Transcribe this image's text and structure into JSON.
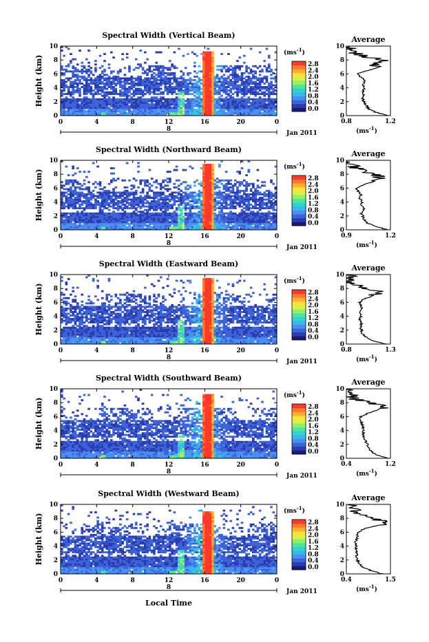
{
  "figure": {
    "xlabel": "Local Time",
    "date_label": "Jan 2011",
    "day_label": "8",
    "colorbar_unit_base": "(ms",
    "colorbar_unit_exp": "-1",
    "colorbar_ticks": [
      "2.8",
      "2.4",
      "2.0",
      "1.6",
      "1.2",
      "0.8",
      "0.4",
      "0.0"
    ],
    "colormap": [
      "#1a1a6e",
      "#2a3cb0",
      "#3d63d9",
      "#4a8ff0",
      "#3ab7ee",
      "#2fd3d0",
      "#4fe3a0",
      "#8ff06a",
      "#d7f04a",
      "#ffe23a",
      "#ffb030",
      "#ff7a2a",
      "#ff3a2a"
    ],
    "average_title": "Average",
    "average_xlabel_base": "(ms",
    "average_xlabel_exp": "-1"
  },
  "chart_data": [
    {
      "type": "heatmap",
      "title": "Spectral Width (Vertical Beam)",
      "ylabel": "Height (km)",
      "xlim": [
        0,
        24
      ],
      "ylim": [
        0,
        10
      ],
      "x_ticks": [
        "0",
        "4",
        "8",
        "12",
        "16",
        "20",
        "0"
      ],
      "y_ticks": [
        "0",
        "2",
        "4",
        "6",
        "8",
        "10"
      ],
      "colorbar_range": [
        0.0,
        2.8
      ],
      "average_profile": {
        "xlim": [
          0.8,
          1.2
        ],
        "x_ticks": [
          "0.8",
          "1.2"
        ],
        "height": [
          0,
          0.5,
          1,
          1.5,
          2,
          2.5,
          3,
          3.5,
          4,
          4.5,
          5,
          5.5,
          6,
          6.5,
          7,
          7.5,
          8,
          8.5,
          9,
          9.5,
          10
        ],
        "value": [
          1.18,
          1.06,
          1.0,
          0.98,
          0.96,
          0.95,
          0.96,
          0.95,
          0.96,
          0.95,
          0.97,
          0.94,
          0.9,
          1.0,
          1.1,
          1.05,
          1.15,
          0.95,
          0.88,
          0.85,
          0.82
        ]
      }
    },
    {
      "type": "heatmap",
      "title": "Spectral Width (Northward Beam)",
      "ylabel": "Height (km)",
      "xlim": [
        0,
        24
      ],
      "ylim": [
        0,
        10
      ],
      "x_ticks": [
        "0",
        "4",
        "8",
        "12",
        "16",
        "20",
        "0"
      ],
      "y_ticks": [
        "0",
        "2",
        "4",
        "6",
        "8",
        "10"
      ],
      "colorbar_range": [
        0.0,
        2.8
      ],
      "average_profile": {
        "xlim": [
          0.9,
          1.2
        ],
        "x_ticks": [
          "0.9",
          "1.2"
        ],
        "height": [
          0,
          0.5,
          1,
          1.5,
          2,
          2.5,
          3,
          3.5,
          4,
          4.5,
          5,
          5.5,
          6,
          6.5,
          7,
          7.5,
          8,
          8.5,
          9,
          9.5,
          10
        ],
        "value": [
          1.18,
          1.1,
          1.04,
          1.02,
          1.01,
          1.0,
          1.02,
          1.0,
          1.01,
          0.99,
          1.0,
          0.98,
          0.97,
          1.02,
          1.1,
          1.14,
          1.08,
          1.0,
          0.95,
          0.92,
          0.9
        ]
      }
    },
    {
      "type": "heatmap",
      "title": "Spectral Width (Eastward Beam)",
      "ylabel": "Height (km)",
      "xlim": [
        0,
        24
      ],
      "ylim": [
        0,
        10
      ],
      "x_ticks": [
        "0",
        "4",
        "8",
        "12",
        "16",
        "20",
        "0"
      ],
      "y_ticks": [
        "0",
        "2",
        "4",
        "6",
        "8",
        "10"
      ],
      "colorbar_range": [
        0.0,
        2.8
      ],
      "average_profile": {
        "xlim": [
          0.8,
          1.3
        ],
        "x_ticks": [
          "0.8",
          "1.3"
        ],
        "height": [
          0,
          0.5,
          1,
          1.5,
          2,
          2.5,
          3,
          3.5,
          4,
          4.5,
          5,
          5.5,
          6,
          6.5,
          7,
          7.5,
          8,
          8.5,
          9,
          9.5,
          10
        ],
        "value": [
          1.25,
          1.1,
          1.02,
          0.98,
          0.97,
          0.96,
          0.97,
          0.95,
          0.97,
          0.96,
          0.98,
          0.97,
          0.95,
          1.0,
          1.12,
          1.2,
          1.05,
          0.88,
          0.85,
          0.84,
          0.83
        ]
      }
    },
    {
      "type": "heatmap",
      "title": "Spectral Width (Southward Beam)",
      "ylabel": "Height (km)",
      "xlim": [
        0,
        24
      ],
      "ylim": [
        0,
        10
      ],
      "x_ticks": [
        "0",
        "4",
        "8",
        "12",
        "16",
        "20",
        "0"
      ],
      "y_ticks": [
        "0",
        "2",
        "4",
        "6",
        "8",
        "10"
      ],
      "colorbar_range": [
        0.0,
        2.8
      ],
      "average_profile": {
        "xlim": [
          0.4,
          1.2
        ],
        "x_ticks": [
          "0.4",
          "1.2"
        ],
        "height": [
          0,
          0.5,
          1,
          1.5,
          2,
          2.5,
          3,
          3.5,
          4,
          4.5,
          5,
          5.5,
          6,
          6.5,
          7,
          7.5,
          8,
          8.5,
          9,
          9.5,
          10
        ],
        "value": [
          1.15,
          0.95,
          0.85,
          0.8,
          0.78,
          0.75,
          0.72,
          0.7,
          0.72,
          0.7,
          0.68,
          0.66,
          0.65,
          0.8,
          1.0,
          1.1,
          0.85,
          0.55,
          0.5,
          0.48,
          0.46
        ]
      }
    },
    {
      "type": "heatmap",
      "title": "Spectral Width (Westward Beam)",
      "ylabel": "Height (km)",
      "xlim": [
        0,
        24
      ],
      "ylim": [
        0,
        10
      ],
      "x_ticks": [
        "0",
        "4",
        "8",
        "12",
        "16",
        "20",
        "0"
      ],
      "y_ticks": [
        "0",
        "2",
        "4",
        "6",
        "8",
        "10"
      ],
      "colorbar_range": [
        0.0,
        2.8
      ],
      "average_profile": {
        "xlim": [
          0.4,
          1.5
        ],
        "x_ticks": [
          "0.4",
          "1.5"
        ],
        "height": [
          0,
          0.5,
          1,
          1.5,
          2,
          2.5,
          3,
          3.5,
          4,
          4.5,
          5,
          5.5,
          6,
          6.5,
          7,
          7.5,
          8,
          8.5,
          9,
          9.5,
          10
        ],
        "value": [
          1.3,
          1.0,
          0.8,
          0.72,
          0.68,
          0.65,
          0.66,
          0.64,
          0.65,
          0.63,
          0.66,
          0.67,
          0.7,
          0.85,
          1.2,
          1.4,
          1.05,
          0.7,
          0.6,
          0.55,
          0.52
        ]
      }
    }
  ]
}
